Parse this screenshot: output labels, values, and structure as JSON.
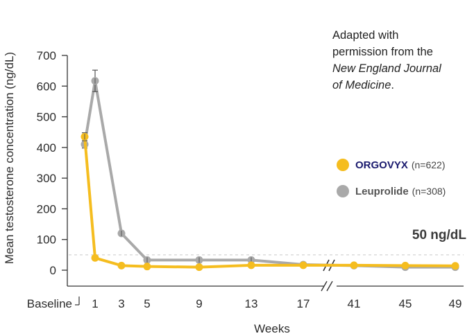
{
  "chart_data": {
    "type": "line",
    "ylabel": "Mean testosterone concentration (ng/dL)",
    "xlabel": "Weeks",
    "ylim": [
      0,
      700
    ],
    "yticks": [
      "0",
      "100",
      "200",
      "300",
      "400",
      "500",
      "600",
      "700"
    ],
    "categories": [
      "Baseline",
      "1",
      "3",
      "5",
      "9",
      "13",
      "17",
      "41",
      "45",
      "49"
    ],
    "axis_break": "between 17 and 41",
    "grid": false,
    "legend_position": "right",
    "series": [
      {
        "name": "Leuprolide",
        "count_label": "(n=308)",
        "color": "#a9a9a9",
        "values": [
          410,
          617,
          120,
          33,
          33,
          33,
          18,
          15,
          10,
          10
        ],
        "error": [
          12,
          35,
          8,
          7,
          8,
          8,
          3,
          3,
          3,
          3
        ]
      },
      {
        "name": "ORGOVYX",
        "count_label": "(n=622)",
        "color": "#f5bd1f",
        "values": [
          435,
          40,
          15,
          12,
          10,
          16,
          16,
          16,
          15,
          14
        ],
        "error": [
          13,
          3,
          2,
          2,
          2,
          2,
          2,
          2,
          2,
          2
        ]
      }
    ],
    "reference_line": {
      "value": 50,
      "label": "50 ng/dL",
      "style": "dashed"
    },
    "annotation": {
      "line1": "Adapted with",
      "line2": "permission from the",
      "line3": "New England Journal",
      "line4": "of Medicine",
      "line4_suffix": "."
    }
  }
}
